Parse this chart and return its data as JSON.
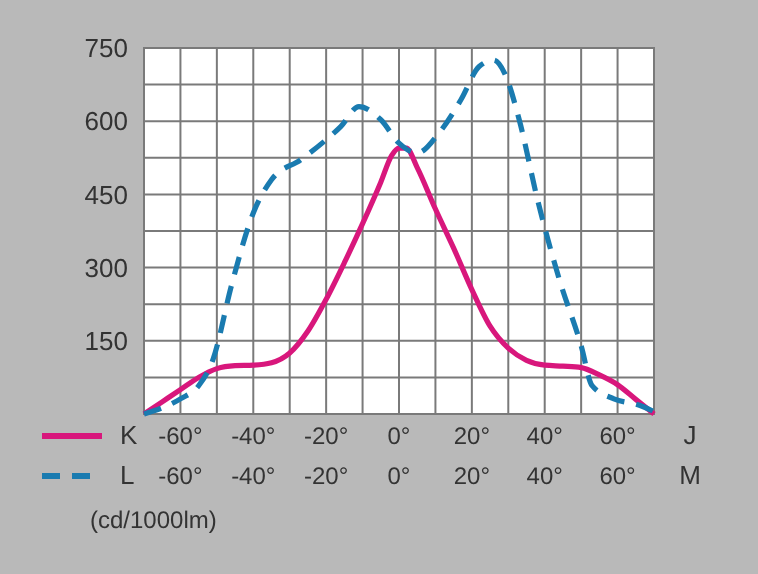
{
  "chart_data": {
    "type": "line",
    "ylabel": "(cd/1000lm)",
    "xlabel": "J",
    "x2label": "M",
    "xlim": [
      -70,
      70
    ],
    "x2lim": [
      -70,
      70
    ],
    "ylim": [
      0,
      750
    ],
    "xticks": [
      {
        "value": -70,
        "label": null
      },
      {
        "value": -60,
        "label": "-60°"
      },
      {
        "value": -50,
        "label": null
      },
      {
        "value": -40,
        "label": "-40°"
      },
      {
        "value": -30,
        "label": null
      },
      {
        "value": -20,
        "label": "-20°"
      },
      {
        "value": -10,
        "label": null
      },
      {
        "value": 0,
        "label": "0°"
      },
      {
        "value": 10,
        "label": null
      },
      {
        "value": 20,
        "label": "20°"
      },
      {
        "value": 30,
        "label": null
      },
      {
        "value": 40,
        "label": "40°"
      },
      {
        "value": 50,
        "label": null
      },
      {
        "value": 60,
        "label": "60°"
      },
      {
        "value": 70,
        "label": null
      }
    ],
    "x2ticks": [
      {
        "value": -60,
        "label": "-60°"
      },
      {
        "value": -40,
        "label": "-40°"
      },
      {
        "value": -20,
        "label": "-20°"
      },
      {
        "value": 0,
        "label": "0°"
      },
      {
        "value": 20,
        "label": "20°"
      },
      {
        "value": 40,
        "label": "40°"
      },
      {
        "value": 60,
        "label": "60°"
      }
    ],
    "yticks": [
      {
        "value": 0,
        "label": null
      },
      {
        "value": 75,
        "label": null
      },
      150,
      {
        "value": 225,
        "label": null
      },
      300,
      {
        "value": 375,
        "label": null
      },
      450,
      {
        "value": 525,
        "label": null
      },
      600,
      {
        "value": 675,
        "label": null
      },
      750
    ],
    "grid": true,
    "legend": "bottom left",
    "marker": "none",
    "series": [
      {
        "name": "K",
        "color": "#d8177c",
        "line_style": "solid",
        "x": [
          -70,
          -65,
          -60,
          -55,
          -50,
          -45,
          -40,
          -35,
          -30,
          -25,
          -20,
          -15,
          -10,
          -5,
          -2,
          0,
          2,
          5,
          10,
          15,
          20,
          25,
          30,
          35,
          40,
          45,
          50,
          55,
          60,
          65,
          70
        ],
        "values": [
          0,
          25,
          50,
          75,
          93,
          99,
          100,
          105,
          125,
          170,
          235,
          310,
          390,
          475,
          530,
          545,
          545,
          505,
          420,
          340,
          255,
          180,
          135,
          110,
          100,
          98,
          95,
          80,
          60,
          30,
          0
        ]
      },
      {
        "name": "L",
        "color": "#1a7bb0",
        "line_style": "dashed",
        "axis": "x2",
        "x": [
          -70,
          -60,
          -55,
          -51,
          -46,
          -40,
          -35,
          -27,
          -20,
          -16,
          -11,
          -5,
          0,
          5,
          11,
          17,
          22,
          26,
          29,
          33,
          38,
          44,
          50,
          53,
          59,
          66,
          70
        ],
        "values": [
          0,
          31,
          58,
          113,
          263,
          412,
          480,
          521,
          562,
          589,
          630,
          603,
          555,
          535,
          576,
          644,
          712,
          725,
          698,
          603,
          440,
          276,
          140,
          58,
          31,
          18,
          5
        ]
      }
    ]
  }
}
